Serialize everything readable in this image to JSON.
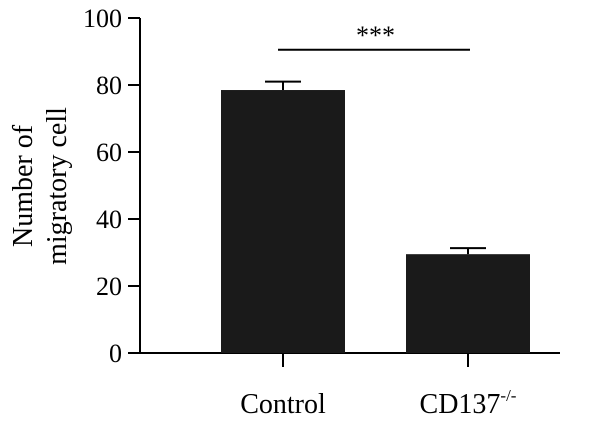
{
  "chart_data": {
    "type": "bar",
    "categories": [
      "Control",
      "CD137"
    ],
    "category_superscripts": [
      "",
      "-/-"
    ],
    "values": [
      78.5,
      29.5
    ],
    "errors": [
      2.5,
      1.8
    ],
    "ylabel_lines": [
      "Number of",
      "migratory cell"
    ],
    "ylim": [
      0,
      100
    ],
    "yticks": [
      "0",
      "20",
      "40",
      "60",
      "80",
      "100"
    ],
    "significance": {
      "from": 0,
      "to": 1,
      "y": 95,
      "label": "***"
    },
    "bar_color": "#1a1a1a",
    "axis_color": "#000000",
    "grid": false,
    "legend": "none"
  }
}
